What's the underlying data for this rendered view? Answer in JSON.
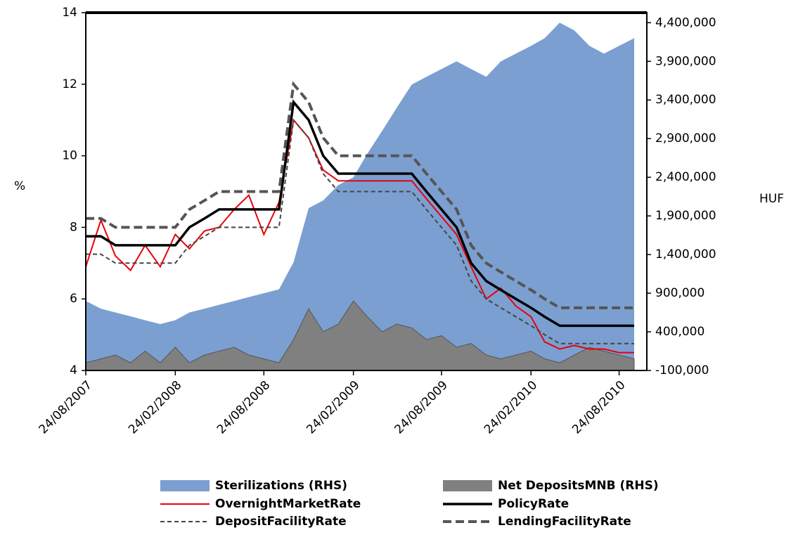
{
  "chart_data": {
    "type": "line",
    "y_label": "%",
    "y2_label": "HUF",
    "x": [
      "2007-08-24",
      "2007-09-24",
      "2007-10-24",
      "2007-11-24",
      "2007-12-24",
      "2008-01-24",
      "2008-02-24",
      "2008-03-24",
      "2008-04-24",
      "2008-05-24",
      "2008-06-24",
      "2008-07-24",
      "2008-08-24",
      "2008-09-24",
      "2008-10-24",
      "2008-11-24",
      "2008-12-24",
      "2009-01-24",
      "2009-02-24",
      "2009-03-24",
      "2009-04-24",
      "2009-05-24",
      "2009-06-24",
      "2009-07-24",
      "2009-08-24",
      "2009-09-24",
      "2009-10-24",
      "2009-11-24",
      "2009-12-24",
      "2010-01-24",
      "2010-02-24",
      "2010-03-24",
      "2010-04-24",
      "2010-05-24",
      "2010-06-24",
      "2010-07-24",
      "2010-08-24",
      "2010-09-24"
    ],
    "xlim": [
      "2007-08-24",
      "2010-10-20"
    ],
    "xticks": [
      {
        "value": "2007-08-24",
        "label": "24/08/2007"
      },
      {
        "value": "2008-02-24",
        "label": "24/02/2008"
      },
      {
        "value": "2008-08-24",
        "label": "24/08/2008"
      },
      {
        "value": "2009-02-24",
        "label": "24/02/2009"
      },
      {
        "value": "2009-08-24",
        "label": "24/08/2009"
      },
      {
        "value": "2010-02-24",
        "label": "24/02/2010"
      },
      {
        "value": "2010-08-24",
        "label": "24/08/2010"
      }
    ],
    "ylim": [
      4,
      14
    ],
    "yticks": [
      4,
      6,
      8,
      10,
      12,
      14
    ],
    "y2lim": [
      -100000,
      4530000
    ],
    "y2ticks": [
      {
        "value": -100000,
        "label": "-100,000"
      },
      {
        "value": 400000,
        "label": "400,000"
      },
      {
        "value": 900000,
        "label": "900,000"
      },
      {
        "value": 1400000,
        "label": "1,400,000"
      },
      {
        "value": 1900000,
        "label": "1,900,000"
      },
      {
        "value": 2400000,
        "label": "2,400,000"
      },
      {
        "value": 2900000,
        "label": "2,900,000"
      },
      {
        "value": 3400000,
        "label": "3,400,000"
      },
      {
        "value": 3900000,
        "label": "3,900,000"
      },
      {
        "value": 4400000,
        "label": "4,400,000"
      }
    ],
    "series": [
      {
        "name": "Sterilizations (RHS)",
        "kind": "area",
        "axis": "y2",
        "color": "#7c9fd1",
        "values": [
          800000,
          700000,
          650000,
          600000,
          550000,
          500000,
          550000,
          650000,
          700000,
          750000,
          800000,
          850000,
          900000,
          950000,
          1300000,
          2000000,
          2100000,
          2300000,
          2400000,
          2700000,
          3000000,
          3300000,
          3600000,
          3700000,
          3800000,
          3900000,
          3800000,
          3700000,
          3900000,
          4000000,
          4100000,
          4200000,
          4400000,
          4300000,
          4100000,
          4000000,
          4100000,
          4200000
        ]
      },
      {
        "name": "Net DepositsMNB (RHS)",
        "kind": "area",
        "axis": "y2",
        "color": "#808080",
        "values": [
          0,
          50000,
          100000,
          0,
          150000,
          0,
          200000,
          0,
          100000,
          150000,
          200000,
          100000,
          50000,
          0,
          300000,
          700000,
          400000,
          500000,
          800000,
          600000,
          400000,
          500000,
          450000,
          300000,
          350000,
          200000,
          250000,
          100000,
          50000,
          100000,
          150000,
          50000,
          0,
          100000,
          200000,
          150000,
          100000,
          50000
        ]
      },
      {
        "name": "OvernightMarketRate",
        "kind": "line",
        "color": "#e8000b",
        "width": 2,
        "values": [
          6.9,
          8.2,
          7.2,
          6.8,
          7.5,
          6.9,
          7.8,
          7.4,
          7.9,
          8.0,
          8.5,
          8.9,
          7.8,
          8.7,
          11.0,
          10.5,
          9.6,
          9.3,
          9.3,
          9.3,
          9.3,
          9.3,
          9.3,
          8.8,
          8.3,
          7.8,
          6.9,
          6.0,
          6.3,
          5.8,
          5.5,
          4.8,
          4.6,
          4.7,
          4.6,
          4.6,
          4.5,
          4.5
        ]
      },
      {
        "name": "PolicyRate",
        "kind": "line",
        "color": "#000000",
        "width": 3.5,
        "values": [
          7.75,
          7.75,
          7.5,
          7.5,
          7.5,
          7.5,
          7.5,
          8.0,
          8.25,
          8.5,
          8.5,
          8.5,
          8.5,
          8.5,
          11.5,
          11.0,
          10.0,
          9.5,
          9.5,
          9.5,
          9.5,
          9.5,
          9.5,
          9.0,
          8.5,
          8.0,
          7.0,
          6.5,
          6.25,
          6.0,
          5.75,
          5.5,
          5.25,
          5.25,
          5.25,
          5.25,
          5.25,
          5.25
        ]
      },
      {
        "name": "DepositFacilityRate",
        "kind": "line",
        "color": "#444444",
        "width": 2,
        "dash": "6 4",
        "values": [
          7.25,
          7.25,
          7.0,
          7.0,
          7.0,
          7.0,
          7.0,
          7.5,
          7.75,
          8.0,
          8.0,
          8.0,
          8.0,
          8.0,
          11.0,
          10.5,
          9.5,
          9.0,
          9.0,
          9.0,
          9.0,
          9.0,
          9.0,
          8.5,
          8.0,
          7.5,
          6.5,
          6.0,
          5.75,
          5.5,
          5.25,
          5.0,
          4.75,
          4.75,
          4.75,
          4.75,
          4.75,
          4.75
        ]
      },
      {
        "name": "LendingFacilityRate",
        "kind": "line",
        "color": "#555555",
        "width": 4,
        "dash": "12 6",
        "values": [
          8.25,
          8.25,
          8.0,
          8.0,
          8.0,
          8.0,
          8.0,
          8.5,
          8.75,
          9.0,
          9.0,
          9.0,
          9.0,
          9.0,
          12.0,
          11.5,
          10.5,
          10.0,
          10.0,
          10.0,
          10.0,
          10.0,
          10.0,
          9.5,
          9.0,
          8.5,
          7.5,
          7.0,
          6.75,
          6.5,
          6.25,
          6.0,
          5.75,
          5.75,
          5.75,
          5.75,
          5.75,
          5.75
        ]
      }
    ]
  }
}
